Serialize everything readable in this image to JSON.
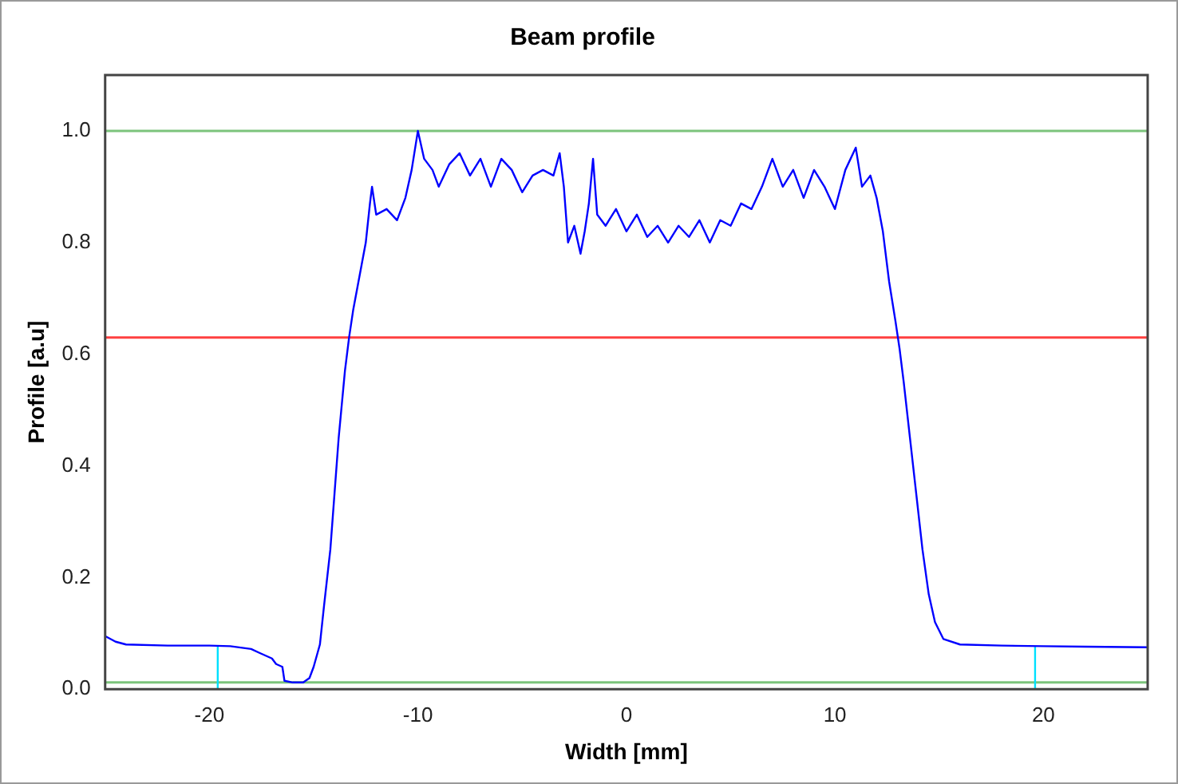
{
  "chart_data": {
    "type": "line",
    "title": "Beam profile",
    "xlabel": "Width [mm]",
    "ylabel": "Profile [a.u]",
    "xlim": [
      -25,
      25
    ],
    "xticks": [
      -20,
      -10,
      0,
      10,
      20
    ],
    "ylim": [
      0,
      1.1
    ],
    "yticks": [
      {
        "value": 0,
        "label": "0.0"
      },
      0.2,
      0.4,
      0.6,
      0.8,
      {
        "value": 1,
        "label": "1.0"
      }
    ],
    "grid": false,
    "legend": false,
    "marker": "none",
    "line_style": "solid",
    "ref_lines": [
      {
        "axis": "y",
        "value": 1,
        "color": "#7cc47c"
      },
      {
        "axis": "y",
        "value": 0.63,
        "color": "#ff4040"
      },
      {
        "axis": "y",
        "value": 0.012,
        "color": "#7cc47c"
      }
    ],
    "series": [
      {
        "color": "#0000ff",
        "x": [
          -25,
          -24.5,
          -24,
          -22,
          -20,
          -19,
          -18,
          -17.6,
          -17,
          -16.8,
          -16.5,
          -16.4,
          -16,
          -15.5,
          -15.2,
          -15,
          -14.7,
          -14.5,
          -14.2,
          -14,
          -13.8,
          -13.5,
          -13.3,
          -13.1,
          -12.9,
          -12.7,
          -12.5,
          -12.3,
          -12.2,
          -12,
          -11.5,
          -11,
          -10.6,
          -10.3,
          -10,
          -9.7,
          -9.3,
          -9,
          -8.5,
          -8,
          -7.5,
          -7,
          -6.5,
          -6,
          -5.5,
          -5,
          -4.5,
          -4,
          -3.5,
          -3.2,
          -3,
          -2.8,
          -2.5,
          -2.2,
          -2,
          -1.8,
          -1.6,
          -1.4,
          -1,
          -0.5,
          0,
          0.5,
          1,
          1.5,
          2,
          2.5,
          3,
          3.5,
          4,
          4.5,
          5,
          5.5,
          6,
          6.5,
          7,
          7.5,
          8,
          8.5,
          9,
          9.5,
          10,
          10.5,
          11,
          11.3,
          11.7,
          12,
          12.3,
          12.6,
          12.9,
          13.1,
          13.3,
          13.6,
          13.9,
          14.2,
          14.5,
          14.8,
          15.2,
          16,
          18,
          20,
          22,
          25
        ],
        "values": [
          0.095,
          0.085,
          0.08,
          0.078,
          0.078,
          0.077,
          0.072,
          0.065,
          0.055,
          0.045,
          0.04,
          0.015,
          0.012,
          0.012,
          0.02,
          0.04,
          0.08,
          0.15,
          0.25,
          0.35,
          0.45,
          0.57,
          0.63,
          0.68,
          0.72,
          0.76,
          0.8,
          0.87,
          0.9,
          0.85,
          0.86,
          0.84,
          0.88,
          0.93,
          1.0,
          0.95,
          0.93,
          0.9,
          0.94,
          0.96,
          0.92,
          0.95,
          0.9,
          0.95,
          0.93,
          0.89,
          0.92,
          0.93,
          0.92,
          0.96,
          0.9,
          0.8,
          0.83,
          0.78,
          0.82,
          0.87,
          0.95,
          0.85,
          0.83,
          0.86,
          0.82,
          0.85,
          0.81,
          0.83,
          0.8,
          0.83,
          0.81,
          0.84,
          0.8,
          0.84,
          0.83,
          0.87,
          0.86,
          0.9,
          0.95,
          0.9,
          0.93,
          0.88,
          0.93,
          0.9,
          0.86,
          0.93,
          0.97,
          0.9,
          0.92,
          0.88,
          0.82,
          0.73,
          0.66,
          0.61,
          0.55,
          0.45,
          0.35,
          0.25,
          0.17,
          0.12,
          0.09,
          0.08,
          0.078,
          0.077,
          0.076,
          0.075
        ]
      },
      {
        "color": "#00e0ff",
        "x": [
          -19.6,
          -19.6,
          0,
          19.6,
          19.6
        ],
        "values": [
          0,
          0.078,
          null,
          0,
          0.077
        ]
      }
    ]
  }
}
